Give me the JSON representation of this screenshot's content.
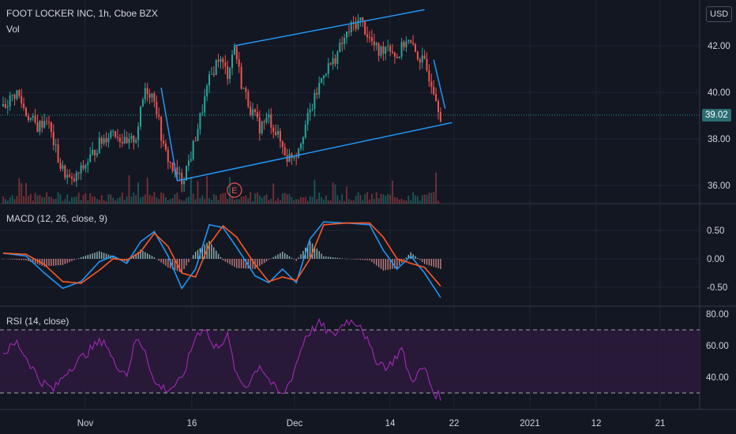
{
  "header": {
    "symbol_title": "FOOT LOCKER INC, 1h, Cboe BZX",
    "volume_label": "Vol",
    "currency_button": "USD"
  },
  "macd_label": "MACD (12, 26, close, 9)",
  "rsi_label": "RSI (14, close)",
  "earnings_marker": "E",
  "last_price_label": "39.02",
  "colors": {
    "background": "#131722",
    "up": "#26a69a",
    "down": "#ef5350",
    "trendline": "#2196f3",
    "macd_line": "#2196f3",
    "signal_line": "#ff5722",
    "rsi_line": "#9c27b0",
    "rsi_band": "#2a1a3a"
  },
  "chart_data": [
    {
      "type": "candlestick",
      "title": "FOOT LOCKER INC, 1h, Cboe BZX",
      "x_tick_labels": [
        "Nov",
        "16",
        "Dec",
        "14",
        "22",
        "2021",
        "12",
        "21"
      ],
      "y_tick_labels": [
        "36.00",
        "38.00",
        "40.00",
        "42.00"
      ],
      "ylim": [
        35.2,
        44.0
      ],
      "last_price": 39.02,
      "close_path": [
        [
          0,
          39.4
        ],
        [
          6,
          40.0
        ],
        [
          10,
          39.1
        ],
        [
          15,
          38.5
        ],
        [
          19,
          38.9
        ],
        [
          25,
          36.8
        ],
        [
          30,
          36.1
        ],
        [
          36,
          36.9
        ],
        [
          42,
          37.8
        ],
        [
          48,
          38.4
        ],
        [
          54,
          37.7
        ],
        [
          58,
          38.1
        ],
        [
          62,
          40.2
        ],
        [
          66,
          39.8
        ],
        [
          70,
          37.6
        ],
        [
          74,
          36.7
        ],
        [
          78,
          36.2
        ],
        [
          82,
          37.3
        ],
        [
          86,
          38.9
        ],
        [
          90,
          40.5
        ],
        [
          94,
          41.5
        ],
        [
          98,
          40.8
        ],
        [
          101,
          42.0
        ],
        [
          104,
          40.4
        ],
        [
          108,
          39.3
        ],
        [
          112,
          38.5
        ],
        [
          116,
          38.9
        ],
        [
          120,
          38.1
        ],
        [
          124,
          37.2
        ],
        [
          128,
          37.4
        ],
        [
          132,
          38.6
        ],
        [
          136,
          39.7
        ],
        [
          140,
          40.9
        ],
        [
          144,
          41.3
        ],
        [
          148,
          42.1
        ],
        [
          152,
          42.8
        ],
        [
          156,
          43.1
        ],
        [
          160,
          42.3
        ],
        [
          164,
          41.7
        ],
        [
          168,
          42.1
        ],
        [
          172,
          41.5
        ],
        [
          176,
          42.3
        ],
        [
          180,
          41.7
        ],
        [
          184,
          41.2
        ],
        [
          188,
          40.2
        ],
        [
          191,
          39.02
        ]
      ],
      "volume_bars": 191,
      "trendlines": [
        {
          "from": [
            101,
            42.0
          ],
          "to": [
            184,
            43.55
          ]
        },
        {
          "from": [
            76,
            36.2
          ],
          "to": [
            196,
            38.7
          ]
        },
        {
          "from": [
            69,
            40.2
          ],
          "to": [
            76,
            36.2
          ]
        },
        {
          "from": [
            188,
            41.4
          ],
          "to": [
            193,
            39.3
          ]
        }
      ],
      "earnings_marker_x": 101
    },
    {
      "type": "line",
      "title": "MACD (12, 26, close, 9)",
      "y_tick_labels": [
        "0.50",
        "0.00",
        "-0.50"
      ],
      "ylim": [
        -0.82,
        0.82
      ],
      "x_range": [
        0,
        191
      ],
      "series": [
        {
          "role": "macd",
          "points": [
            [
              0,
              0.1
            ],
            [
              10,
              0.05
            ],
            [
              18,
              -0.25
            ],
            [
              26,
              -0.52
            ],
            [
              34,
              -0.4
            ],
            [
              42,
              -0.05
            ],
            [
              48,
              0.05
            ],
            [
              54,
              -0.08
            ],
            [
              60,
              0.3
            ],
            [
              66,
              0.48
            ],
            [
              72,
              0.05
            ],
            [
              78,
              -0.52
            ],
            [
              84,
              -0.18
            ],
            [
              90,
              0.6
            ],
            [
              96,
              0.55
            ],
            [
              102,
              0.2
            ],
            [
              110,
              -0.3
            ],
            [
              116,
              -0.42
            ],
            [
              122,
              -0.18
            ],
            [
              128,
              -0.42
            ],
            [
              134,
              0.35
            ],
            [
              140,
              0.65
            ],
            [
              150,
              0.63
            ],
            [
              160,
              0.6
            ],
            [
              166,
              0.15
            ],
            [
              172,
              -0.18
            ],
            [
              178,
              0.05
            ],
            [
              184,
              -0.25
            ],
            [
              191,
              -0.68
            ]
          ]
        },
        {
          "role": "signal",
          "points": [
            [
              0,
              0.1
            ],
            [
              10,
              0.08
            ],
            [
              18,
              -0.1
            ],
            [
              26,
              -0.4
            ],
            [
              34,
              -0.43
            ],
            [
              42,
              -0.2
            ],
            [
              48,
              0.0
            ],
            [
              54,
              -0.02
            ],
            [
              60,
              0.12
            ],
            [
              66,
              0.45
            ],
            [
              72,
              0.22
            ],
            [
              78,
              -0.25
            ],
            [
              84,
              -0.32
            ],
            [
              90,
              0.25
            ],
            [
              96,
              0.58
            ],
            [
              102,
              0.38
            ],
            [
              110,
              -0.1
            ],
            [
              116,
              -0.4
            ],
            [
              122,
              -0.32
            ],
            [
              128,
              -0.38
            ],
            [
              134,
              0.0
            ],
            [
              140,
              0.6
            ],
            [
              150,
              0.63
            ],
            [
              160,
              0.63
            ],
            [
              166,
              0.38
            ],
            [
              172,
              0.0
            ],
            [
              178,
              -0.08
            ],
            [
              184,
              -0.15
            ],
            [
              191,
              -0.48
            ]
          ]
        }
      ]
    },
    {
      "type": "line",
      "title": "RSI (14, close)",
      "y_tick_labels": [
        "80.00",
        "60.00",
        "40.00"
      ],
      "ylim": [
        24,
        82
      ],
      "overbought": 70,
      "oversold": 30,
      "x_range": [
        0,
        191
      ],
      "series": [
        {
          "role": "rsi",
          "points": [
            [
              0,
              55
            ],
            [
              6,
              62
            ],
            [
              12,
              48
            ],
            [
              16,
              38
            ],
            [
              22,
              32
            ],
            [
              28,
              44
            ],
            [
              34,
              52
            ],
            [
              40,
              60
            ],
            [
              44,
              64
            ],
            [
              48,
              50
            ],
            [
              54,
              42
            ],
            [
              58,
              64
            ],
            [
              62,
              58
            ],
            [
              66,
              36
            ],
            [
              72,
              32
            ],
            [
              78,
              38
            ],
            [
              84,
              66
            ],
            [
              88,
              72
            ],
            [
              92,
              58
            ],
            [
              98,
              66
            ],
            [
              102,
              40
            ],
            [
              106,
              34
            ],
            [
              112,
              48
            ],
            [
              118,
              34
            ],
            [
              122,
              28
            ],
            [
              126,
              40
            ],
            [
              132,
              66
            ],
            [
              138,
              74
            ],
            [
              144,
              66
            ],
            [
              150,
              76
            ],
            [
              156,
              74
            ],
            [
              162,
              52
            ],
            [
              168,
              46
            ],
            [
              174,
              58
            ],
            [
              178,
              38
            ],
            [
              184,
              46
            ],
            [
              188,
              30
            ],
            [
              191,
              28
            ]
          ]
        }
      ]
    }
  ]
}
